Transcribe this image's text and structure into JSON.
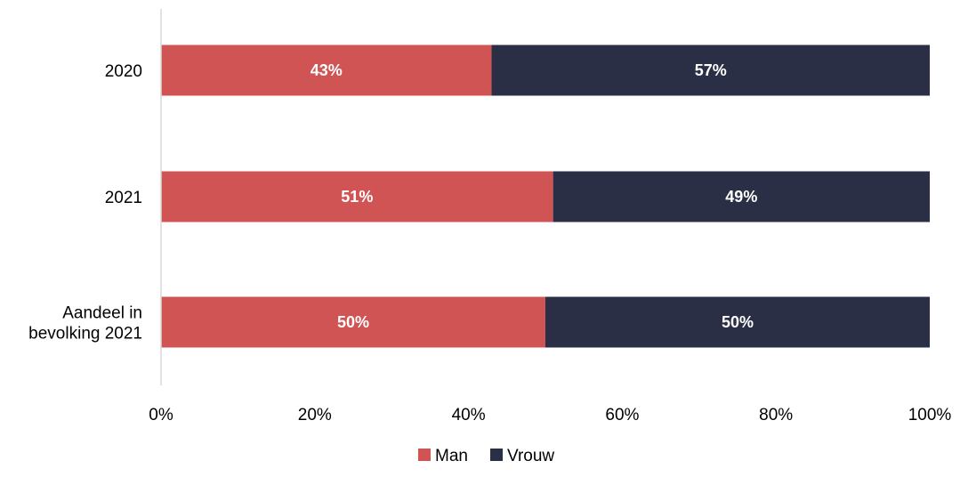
{
  "chart_data": {
    "type": "bar",
    "orientation": "horizontal",
    "stacked": true,
    "categories": [
      "2020",
      "2021",
      "Aandeel in bevolking 2021"
    ],
    "category_label_lines": [
      [
        "2020"
      ],
      [
        "2021"
      ],
      [
        "Aandeel in",
        "bevolking 2021"
      ]
    ],
    "series": [
      {
        "name": "Man",
        "values": [
          43,
          51,
          50
        ],
        "color": "#d05454"
      },
      {
        "name": "Vrouw",
        "values": [
          57,
          49,
          50
        ],
        "color": "#2b2f45"
      }
    ],
    "data_labels": [
      [
        "43%",
        "51%",
        "50%"
      ],
      [
        "57%",
        "49%",
        "50%"
      ]
    ],
    "xlim": [
      0,
      100
    ],
    "x_ticks": [
      "0%",
      "20%",
      "40%",
      "60%",
      "80%",
      "100%"
    ],
    "grid": false,
    "legend_position": "bottom"
  }
}
